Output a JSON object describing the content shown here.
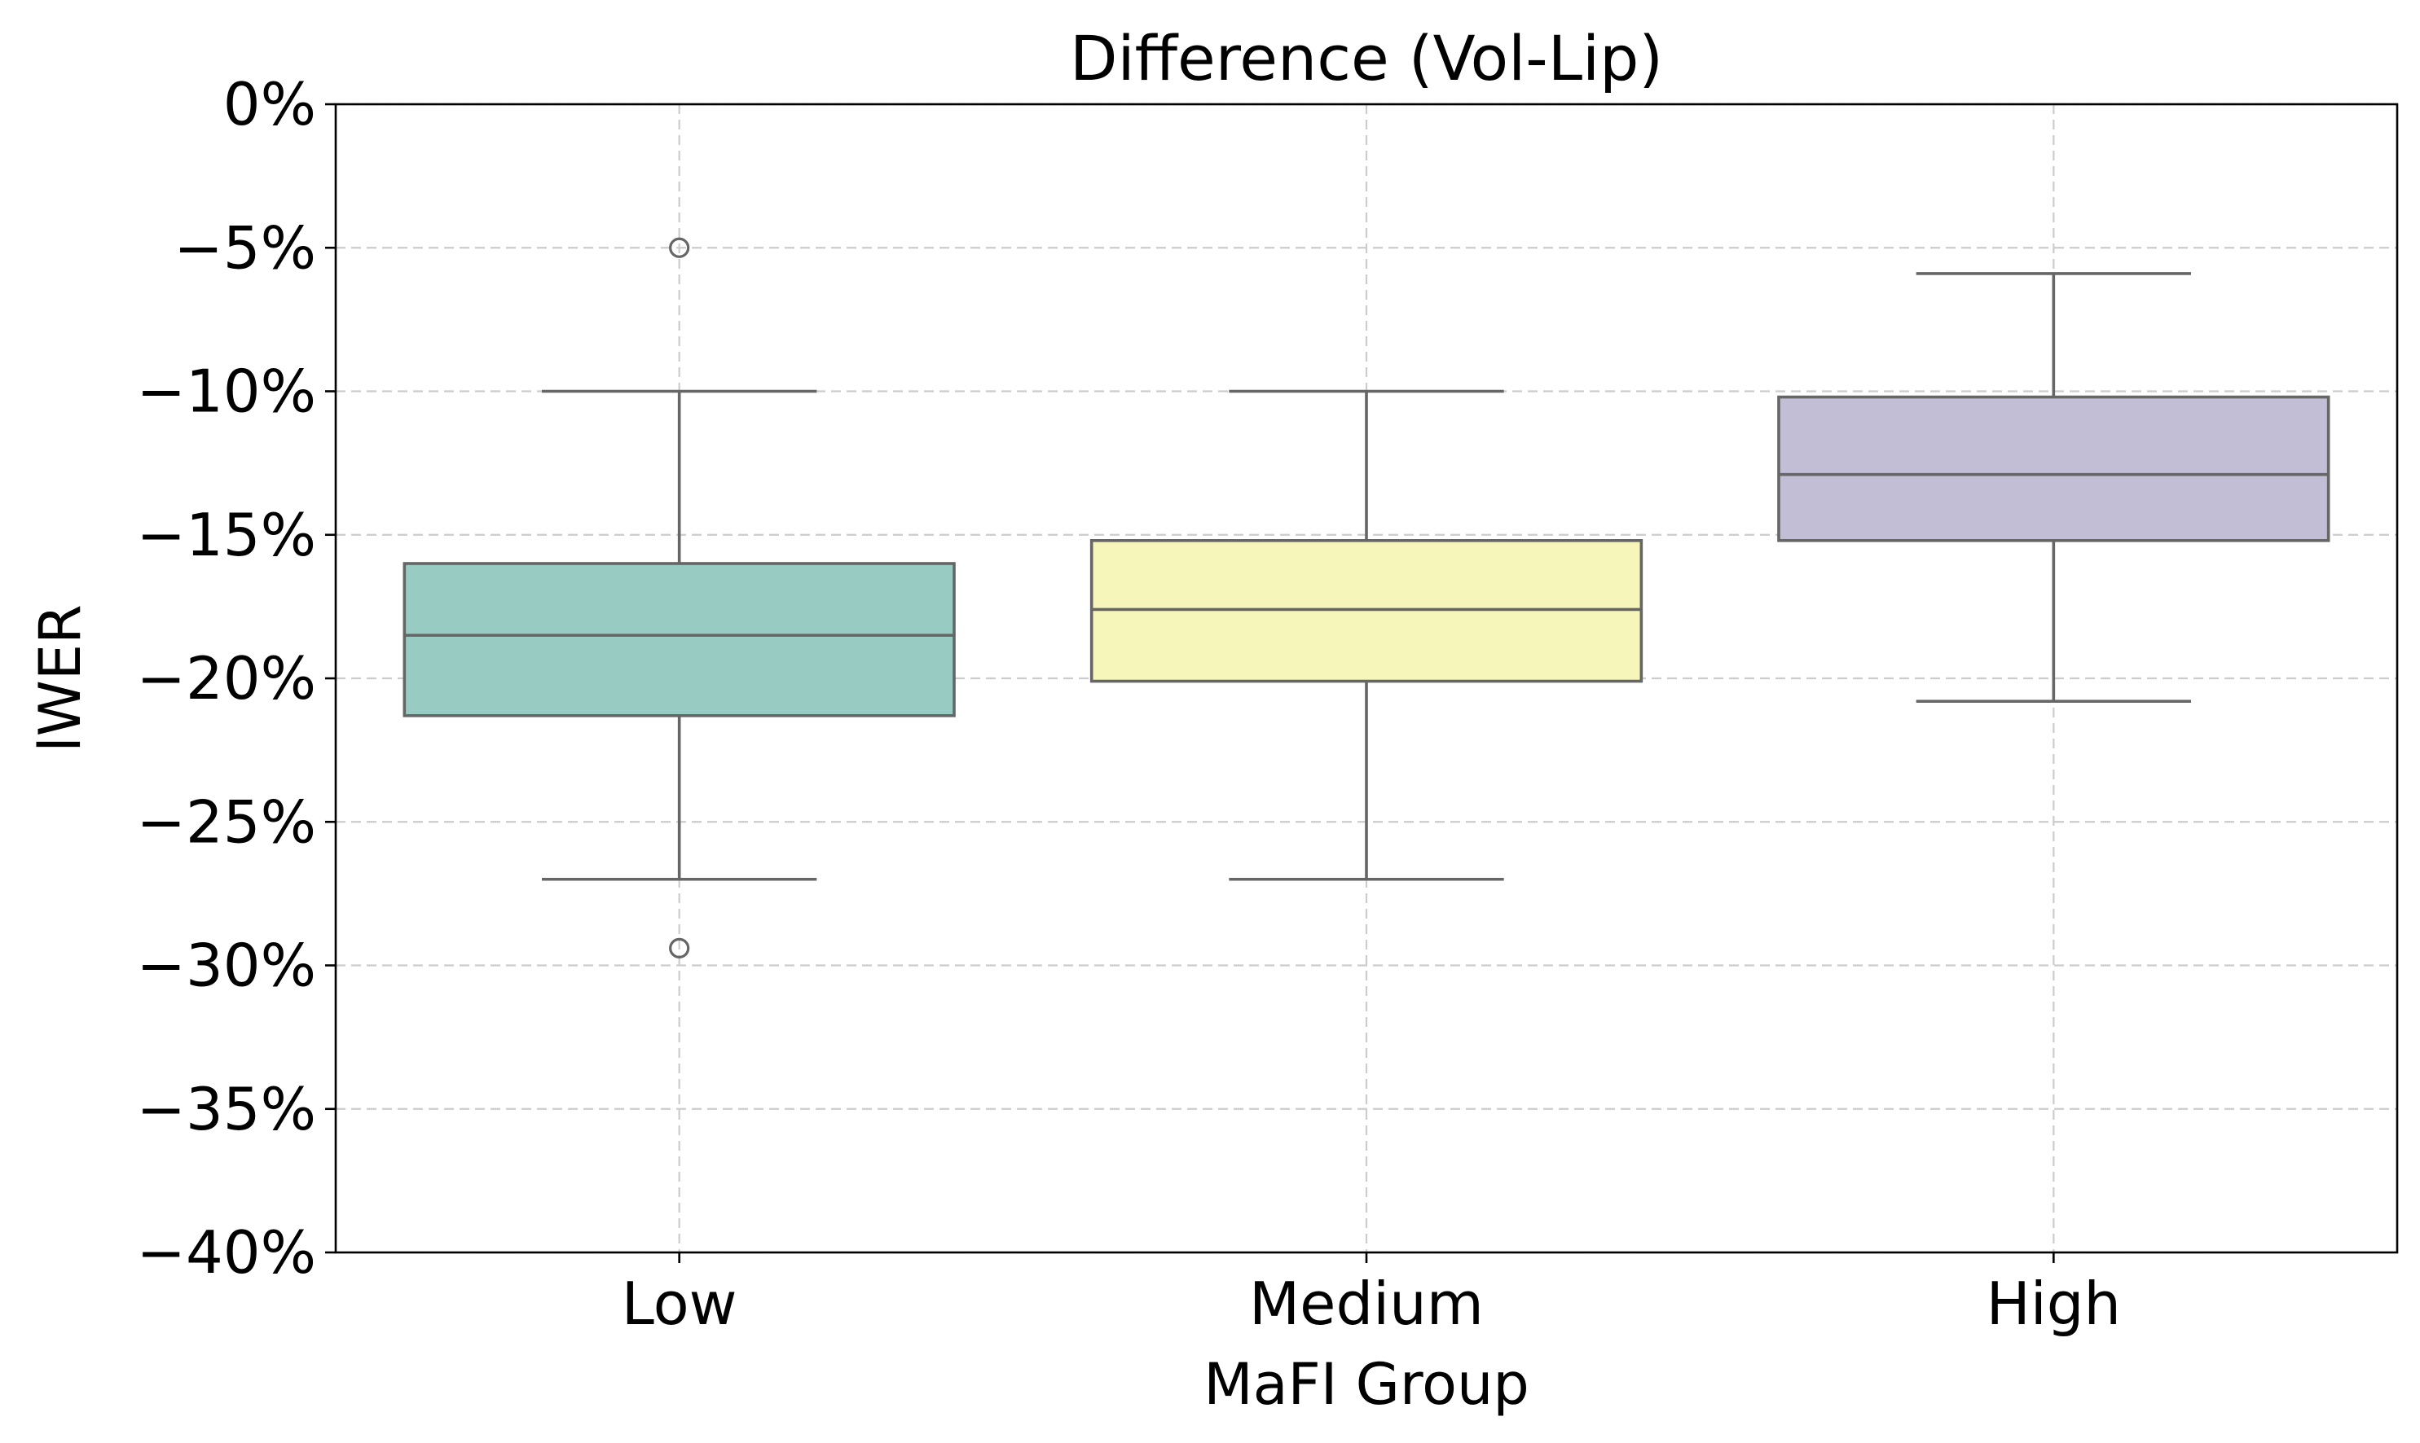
{
  "chart_data": {
    "type": "box",
    "title": "Difference (Vol-Lip)",
    "xlabel": "MaFI Group",
    "ylabel": "lWER",
    "categories": [
      "Low",
      "Medium",
      "High"
    ],
    "ylim": [
      -40,
      0
    ],
    "yticks": [
      0,
      -5,
      -10,
      -15,
      -20,
      -25,
      -30,
      -35,
      -40
    ],
    "ytick_labels": [
      "0%",
      "−5%",
      "−10%",
      "−15%",
      "−20%",
      "−25%",
      "−30%",
      "−35%",
      "−40%"
    ],
    "grid": true,
    "boxes": [
      {
        "category": "Low",
        "whisker_low": -27.0,
        "q1": -21.3,
        "median": -18.5,
        "q3": -16.0,
        "whisker_high": -10.0,
        "fliers": [
          -5.0,
          -29.4
        ],
        "color": "#98cbc1"
      },
      {
        "category": "Medium",
        "whisker_low": -27.0,
        "q1": -20.1,
        "median": -17.6,
        "q3": -15.2,
        "whisker_high": -10.0,
        "fliers": [],
        "color": "#f6f6bb"
      },
      {
        "category": "High",
        "whisker_low": -20.8,
        "q1": -15.2,
        "median": -12.9,
        "q3": -10.2,
        "whisker_high": -5.9,
        "fliers": [],
        "color": "#c1bed6"
      }
    ]
  }
}
